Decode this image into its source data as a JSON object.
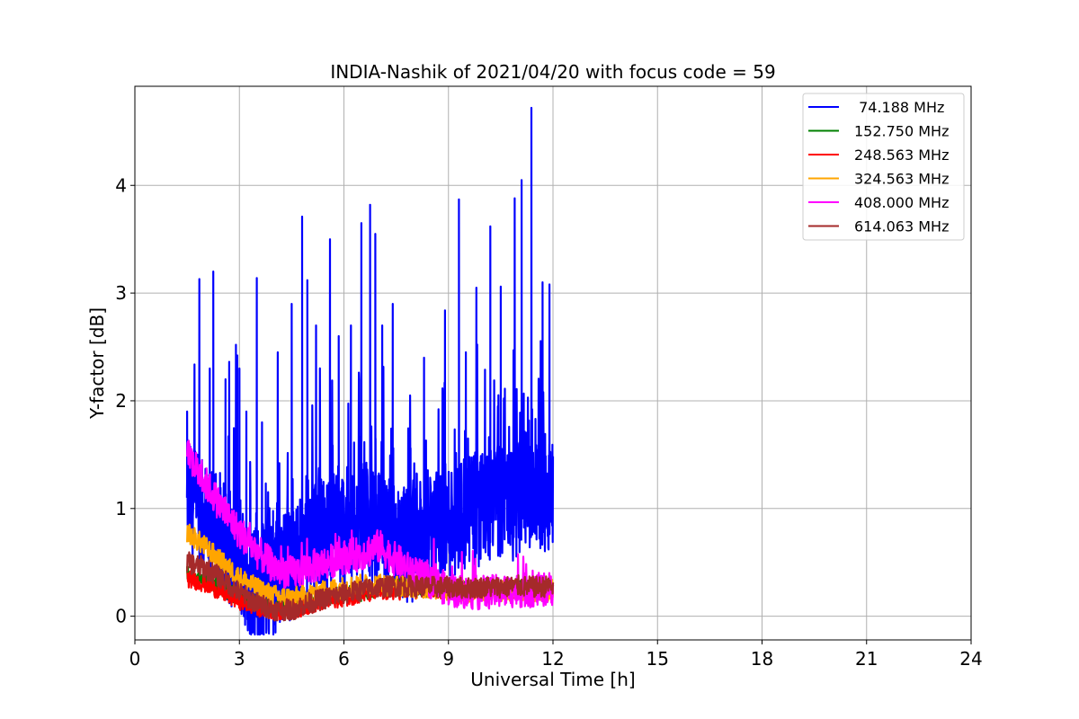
{
  "chart_data": {
    "type": "line",
    "title": "INDIA-Nashik of 2021/04/20 with focus code = 59",
    "xlabel": "Universal Time [h]",
    "ylabel": "Y-factor [dB]",
    "xlim": [
      0,
      24
    ],
    "ylim": [
      -0.22,
      4.92
    ],
    "xticks": [
      0,
      3,
      6,
      9,
      12,
      15,
      18,
      21,
      24
    ],
    "xtick_labels": [
      "0",
      "3",
      "6",
      "9",
      "12",
      "15",
      "18",
      "21",
      "24"
    ],
    "yticks": [
      0,
      1,
      2,
      3,
      4
    ],
    "ytick_labels": [
      "0",
      "1",
      "2",
      "3",
      "4"
    ],
    "grid": true,
    "legend_position": "top-right",
    "series": [
      {
        "name": " 74.188 MHz",
        "color": "#0000ff",
        "x": [
          1.5,
          1.8,
          2.0,
          2.2,
          2.5,
          2.8,
          3.0,
          3.3,
          3.6,
          4.0,
          4.3,
          4.6,
          4.9,
          5.2,
          5.5,
          5.8,
          6.1,
          6.4,
          6.7,
          7.0,
          7.3,
          7.6,
          7.9,
          8.2,
          8.5,
          8.8,
          9.1,
          9.4,
          9.7,
          10.0,
          10.3,
          10.6,
          10.9,
          11.2,
          11.5,
          11.8,
          12.0
        ],
        "y": [
          1.1,
          0.95,
          0.9,
          0.8,
          0.75,
          0.6,
          0.55,
          0.35,
          0.3,
          0.35,
          0.45,
          0.5,
          0.6,
          0.7,
          0.75,
          0.8,
          0.85,
          0.9,
          0.85,
          0.8,
          0.75,
          0.7,
          0.65,
          0.7,
          0.75,
          0.85,
          0.9,
          1.0,
          0.95,
          1.05,
          1.0,
          1.1,
          1.05,
          1.2,
          1.1,
          1.15,
          1.2
        ],
        "peaks_x": [
          1.5,
          1.85,
          2.15,
          2.25,
          2.6,
          2.9,
          3.0,
          3.2,
          3.5,
          3.65,
          4.1,
          4.5,
          4.8,
          4.95,
          5.2,
          5.6,
          5.85,
          6.2,
          6.5,
          6.75,
          6.9,
          7.1,
          7.4,
          7.9,
          8.3,
          8.9,
          9.3,
          9.5,
          9.8,
          10.2,
          10.5,
          10.9,
          11.1,
          11.38,
          11.7,
          11.9
        ],
        "peaks_y": [
          1.9,
          3.13,
          2.3,
          3.2,
          2.2,
          2.52,
          2.3,
          1.9,
          3.14,
          1.8,
          2.45,
          2.9,
          3.71,
          3.12,
          2.7,
          3.5,
          2.6,
          2.7,
          3.65,
          3.82,
          3.55,
          2.7,
          2.9,
          2.05,
          2.4,
          2.84,
          3.87,
          2.45,
          3.05,
          3.62,
          3.06,
          3.88,
          4.05,
          4.72,
          3.1,
          3.08
        ]
      },
      {
        "name": "152.750 MHz",
        "color": "#008000",
        "x": [
          1.5,
          2.0,
          2.5,
          3.0,
          3.5,
          4.0,
          4.5,
          5.0,
          5.5,
          6.0,
          6.5,
          7.0,
          7.5,
          8.0,
          8.5,
          9.0,
          9.5,
          10.0,
          10.5,
          11.0,
          11.5,
          12.0
        ],
        "y": [
          0.4,
          0.35,
          0.25,
          0.18,
          0.12,
          0.08,
          0.1,
          0.13,
          0.17,
          0.2,
          0.22,
          0.26,
          0.27,
          0.27,
          0.25,
          0.26,
          0.25,
          0.26,
          0.26,
          0.27,
          0.26,
          0.27
        ]
      },
      {
        "name": "248.563 MHz",
        "color": "#ff0000",
        "x": [
          1.5,
          2.0,
          2.5,
          3.0,
          3.5,
          4.0,
          4.5,
          5.0,
          5.5,
          6.0,
          6.5,
          7.0,
          7.5,
          8.0,
          8.5,
          9.0,
          9.5,
          10.0,
          10.5,
          11.0,
          11.5,
          12.0
        ],
        "y": [
          0.35,
          0.3,
          0.22,
          0.14,
          0.08,
          0.04,
          0.05,
          0.1,
          0.14,
          0.17,
          0.2,
          0.22,
          0.23,
          0.24,
          0.24,
          0.24,
          0.23,
          0.24,
          0.24,
          0.25,
          0.24,
          0.25
        ]
      },
      {
        "name": "324.563 MHz",
        "color": "#ffa500",
        "x": [
          1.5,
          2.0,
          2.5,
          3.0,
          3.5,
          4.0,
          4.5,
          5.0,
          5.5,
          6.0,
          6.5,
          7.0,
          7.5,
          8.0,
          8.5,
          9.0,
          9.5,
          10.0,
          10.5,
          11.0,
          11.5,
          12.0
        ],
        "y": [
          0.78,
          0.65,
          0.5,
          0.36,
          0.26,
          0.19,
          0.17,
          0.2,
          0.24,
          0.27,
          0.29,
          0.3,
          0.28,
          0.27,
          0.26,
          0.24,
          0.23,
          0.24,
          0.23,
          0.24,
          0.23,
          0.24
        ]
      },
      {
        "name": "408.000 MHz",
        "color": "#ff00ff",
        "x": [
          1.5,
          2.0,
          2.5,
          3.0,
          3.5,
          4.0,
          4.5,
          5.0,
          5.5,
          6.0,
          6.5,
          7.0,
          7.5,
          8.0,
          8.5,
          9.0,
          9.5,
          10.0,
          10.5,
          11.0,
          11.5,
          12.0
        ],
        "y": [
          1.5,
          1.25,
          1.0,
          0.78,
          0.6,
          0.45,
          0.4,
          0.45,
          0.5,
          0.55,
          0.58,
          0.65,
          0.52,
          0.4,
          0.32,
          0.25,
          0.22,
          0.22,
          0.23,
          0.24,
          0.24,
          0.26
        ]
      },
      {
        "name": "614.063 MHz",
        "color": "#a52a2a",
        "x": [
          1.5,
          2.0,
          2.5,
          3.0,
          3.5,
          4.0,
          4.5,
          5.0,
          5.5,
          6.0,
          6.5,
          7.0,
          7.5,
          8.0,
          8.5,
          9.0,
          9.5,
          10.0,
          10.5,
          11.0,
          11.5,
          12.0
        ],
        "y": [
          0.5,
          0.45,
          0.35,
          0.22,
          0.12,
          0.06,
          0.06,
          0.12,
          0.17,
          0.21,
          0.24,
          0.27,
          0.28,
          0.28,
          0.27,
          0.27,
          0.26,
          0.27,
          0.27,
          0.28,
          0.27,
          0.28
        ]
      }
    ]
  }
}
